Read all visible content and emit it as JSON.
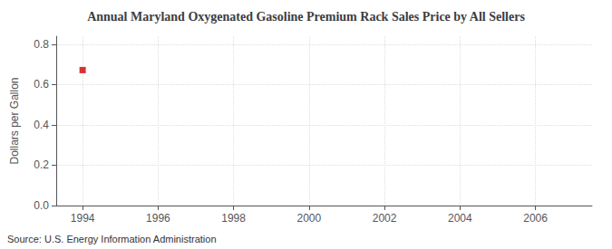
{
  "chart_data": {
    "type": "scatter",
    "title": "Annual Maryland Oxygenated Gasoline Premium Rack Sales Price by All Sellers",
    "ylabel": "Dollars per Gallon",
    "source": "Source: U.S. Energy Information Administration",
    "x": [
      1994
    ],
    "values": [
      0.672
    ],
    "color": "#cc0000",
    "marker": "square",
    "xlim": [
      1993.3,
      2007.5
    ],
    "xticks": [
      1994,
      1996,
      1998,
      2000,
      2002,
      2004,
      2006
    ],
    "ylim": [
      0.0,
      0.84
    ],
    "yticks": [
      {
        "value": 0.0,
        "label": "0.0"
      },
      0.2,
      0.4,
      0.6,
      0.8
    ],
    "grid": true
  }
}
